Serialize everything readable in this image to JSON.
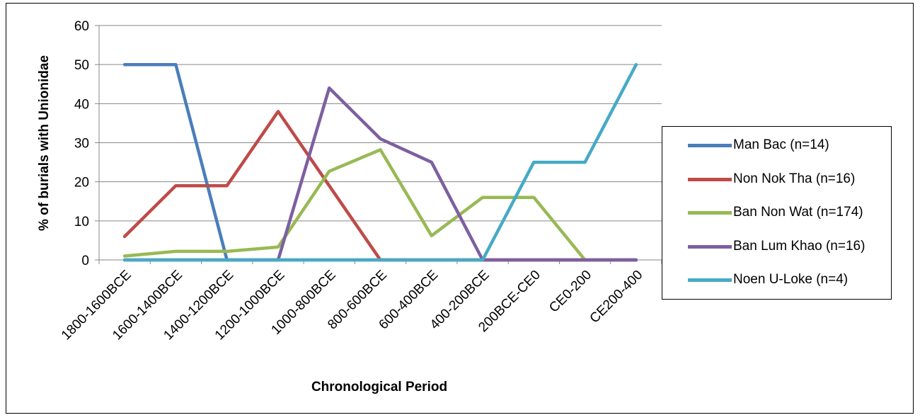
{
  "chart_data": {
    "type": "line",
    "title": "",
    "xlabel": "Chronological Period",
    "ylabel": "% of burials with Unionidae",
    "ylim": [
      0,
      60
    ],
    "yticks": [
      0,
      10,
      20,
      30,
      40,
      50,
      60
    ],
    "grid": true,
    "legend_position": "right",
    "categories": [
      "1800-1600BCE",
      "1600-1400BCE",
      "1400-1200BCE",
      "1200-1000BCE",
      "1000-800BCE",
      "800-600BCE",
      "600-400BCE",
      "400-200BCE",
      "200BCE-CE0",
      "CE0-200",
      "CE200-400"
    ],
    "series": [
      {
        "name": "Man Bac (n=14)",
        "color": "#4a7ebb",
        "values": [
          50,
          50,
          0,
          0,
          0,
          0,
          0,
          0,
          0,
          0,
          0
        ]
      },
      {
        "name": "Non Nok Tha (n=16)",
        "color": "#be4b48",
        "values": [
          6,
          19,
          19,
          38,
          19,
          0,
          0,
          0,
          0,
          0,
          0
        ]
      },
      {
        "name": "Ban Non Wat (n=174)",
        "color": "#98b954",
        "values": [
          1,
          2.2,
          2.2,
          3.3,
          22.7,
          28.2,
          6.2,
          16,
          16,
          0,
          0
        ]
      },
      {
        "name": "Ban Lum Khao (n=16)",
        "color": "#7d5fa0",
        "values": [
          0,
          0,
          0,
          0,
          44,
          31,
          25,
          0,
          0,
          0,
          0
        ]
      },
      {
        "name": "Noen U-Loke (n=4)",
        "color": "#46aac5",
        "values": [
          0,
          0,
          0,
          0,
          0,
          0,
          0,
          0,
          25,
          25,
          50
        ]
      }
    ]
  }
}
